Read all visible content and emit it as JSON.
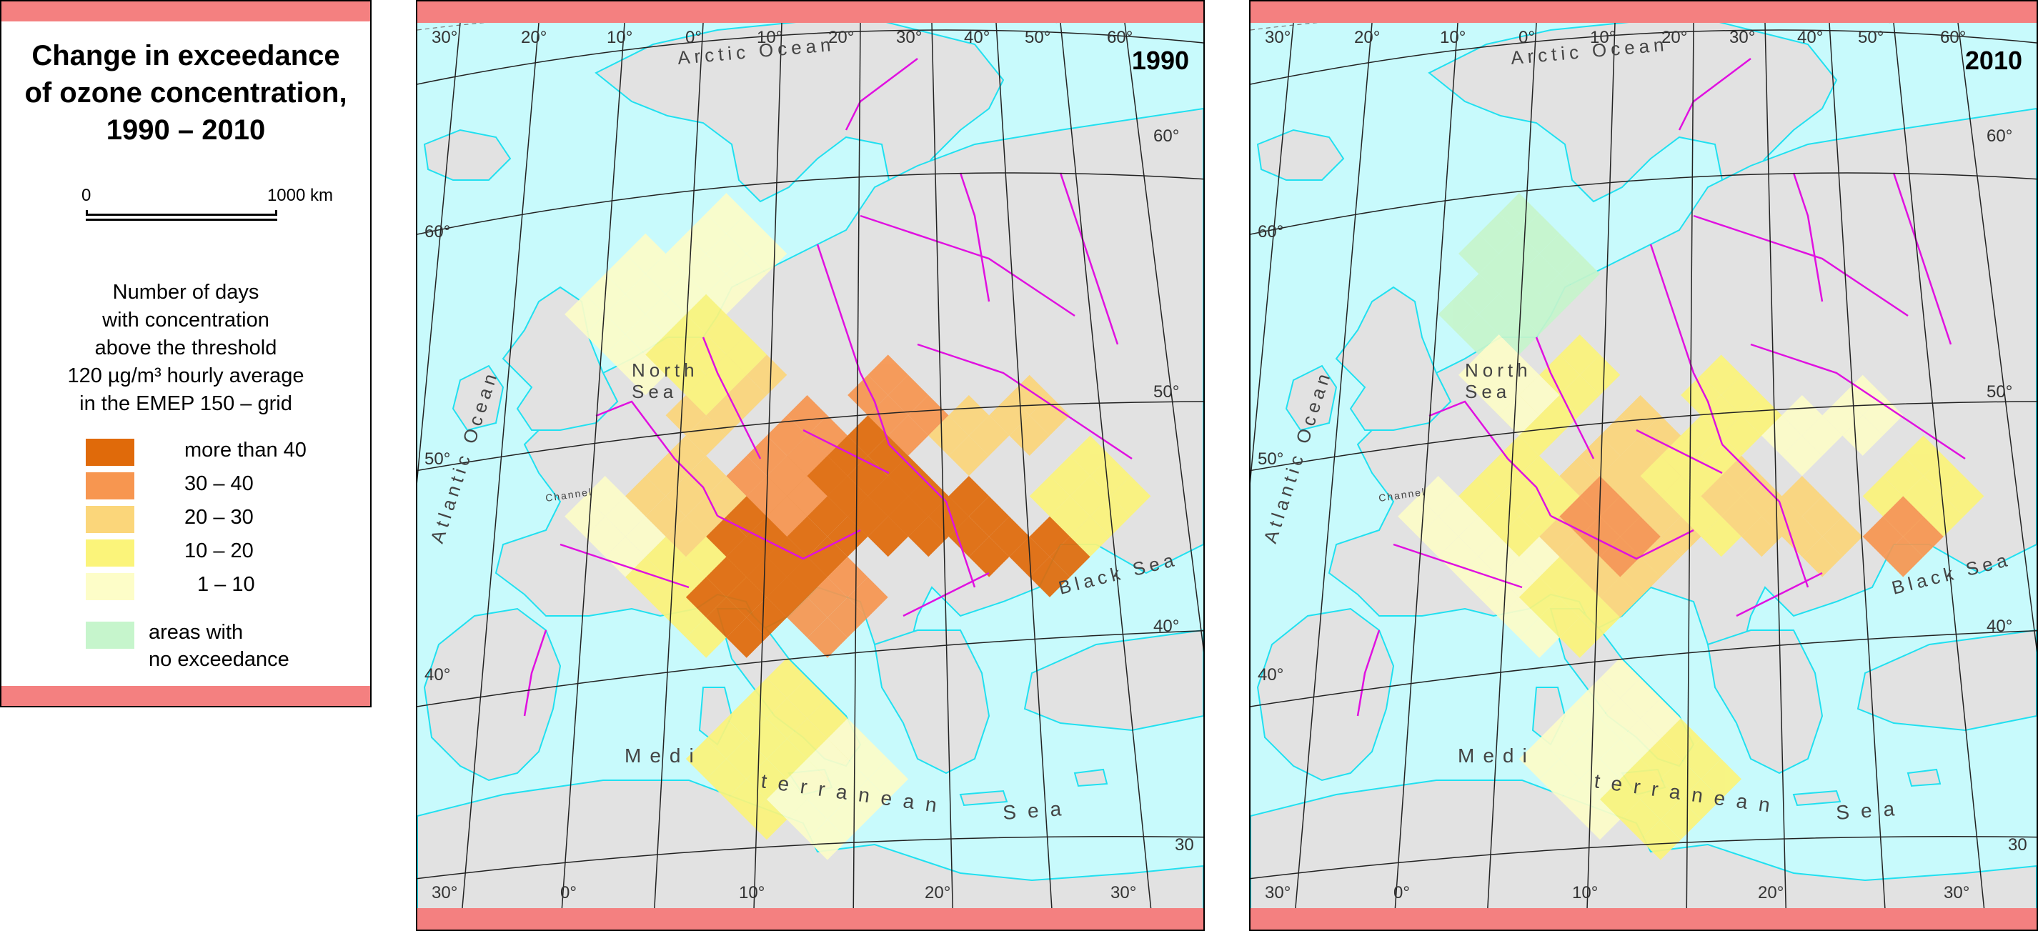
{
  "legend": {
    "title_lines": [
      "Change in exceedance",
      "of ozone concentration,",
      "1990 – 2010"
    ],
    "scale": {
      "start": "0",
      "end": "1000 km"
    },
    "description_lines": [
      "Number of days",
      "with concentration",
      "above the threshold",
      "120 µg/m³ hourly average",
      "in the EMEP 150 – grid"
    ],
    "classes": [
      {
        "label": "more than 40",
        "color": "#e06a0a"
      },
      {
        "label": "30 – 40",
        "color": "#f79650"
      },
      {
        "label": "20 – 30",
        "color": "#fbd67a"
      },
      {
        "label": "10 – 20",
        "color": "#fbf47a"
      },
      {
        "label": "1 – 10",
        "color": "#fdfdc8"
      }
    ],
    "no_exceedance": {
      "line1": "areas with",
      "line2": "no exceedance",
      "color": "#c6f5cc"
    }
  },
  "colors": {
    "sea": "#c8fafc",
    "land": "#e2e2e2",
    "border": "#e010e0",
    "coast": "#20e0f0",
    "band": "#f48080"
  },
  "maps": [
    {
      "year": "1990",
      "top_lon_labels": [
        "30°",
        "20°",
        "10°",
        "0°",
        "10°",
        "20°",
        "30°",
        "40°",
        "50°",
        "60°"
      ],
      "bottom_lon_labels": [
        "30°",
        "0°",
        "10°",
        "20°",
        "30°"
      ],
      "lat_labels": [
        "60°",
        "50°",
        "40°",
        "60°",
        "50°",
        "40°",
        "30"
      ],
      "water_labels": {
        "arctic": "Arctic Ocean",
        "atlantic": "Atlantic Ocean",
        "north_sea_1": "North",
        "north_sea_2": "Sea",
        "channel": "Channel",
        "black_sea": "Black Sea",
        "med_1": "Medi",
        "med_2": "terranean",
        "med_3": "Sea"
      }
    },
    {
      "year": "2010",
      "top_lon_labels": [
        "30°",
        "20°",
        "10°",
        "0°",
        "10°",
        "20°",
        "30°",
        "40°",
        "50°",
        "60°"
      ],
      "bottom_lon_labels": [
        "30°",
        "0°",
        "10°",
        "20°",
        "30°"
      ],
      "lat_labels": [
        "60°",
        "50°",
        "40°",
        "60°",
        "50°",
        "40°",
        "30"
      ],
      "water_labels": {
        "arctic": "Arctic Ocean",
        "atlantic": "Atlantic Ocean",
        "north_sea_1": "North",
        "north_sea_2": "Sea",
        "channel": "Channel",
        "black_sea": "Black Sea",
        "med_1": "Medi",
        "med_2": "terranean",
        "med_3": "Sea"
      }
    }
  ]
}
